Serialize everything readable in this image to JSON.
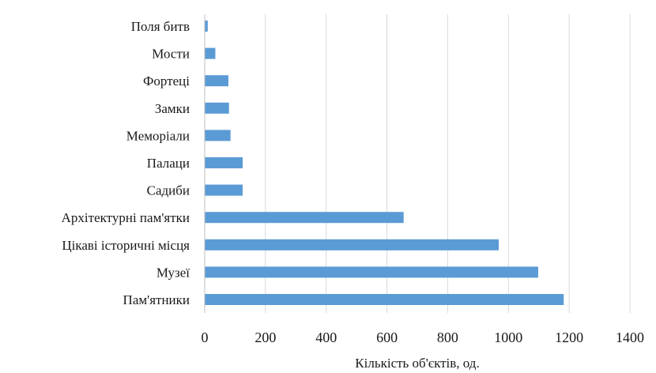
{
  "chart_data": {
    "type": "bar",
    "orientation": "horizontal",
    "categories": [
      "Поля битв",
      "Мости",
      "Фортеці",
      "Замки",
      "Меморіали",
      "Палаци",
      "Садиби",
      "Архітектурні пам'ятки",
      "Цікаві історичні місця",
      "Музеї",
      "Пам'ятники"
    ],
    "values": [
      10,
      35,
      78,
      80,
      85,
      125,
      125,
      655,
      968,
      1098,
      1182
    ],
    "xlabel": "Кількість об'єктів, од.",
    "ylabel": "",
    "xlim": [
      0,
      1400
    ],
    "xticks": [
      "0",
      "200",
      "400",
      "600",
      "800",
      "1000",
      "1200",
      "1400"
    ],
    "grid": "vertical",
    "bar_color": "#5b9bd5"
  }
}
